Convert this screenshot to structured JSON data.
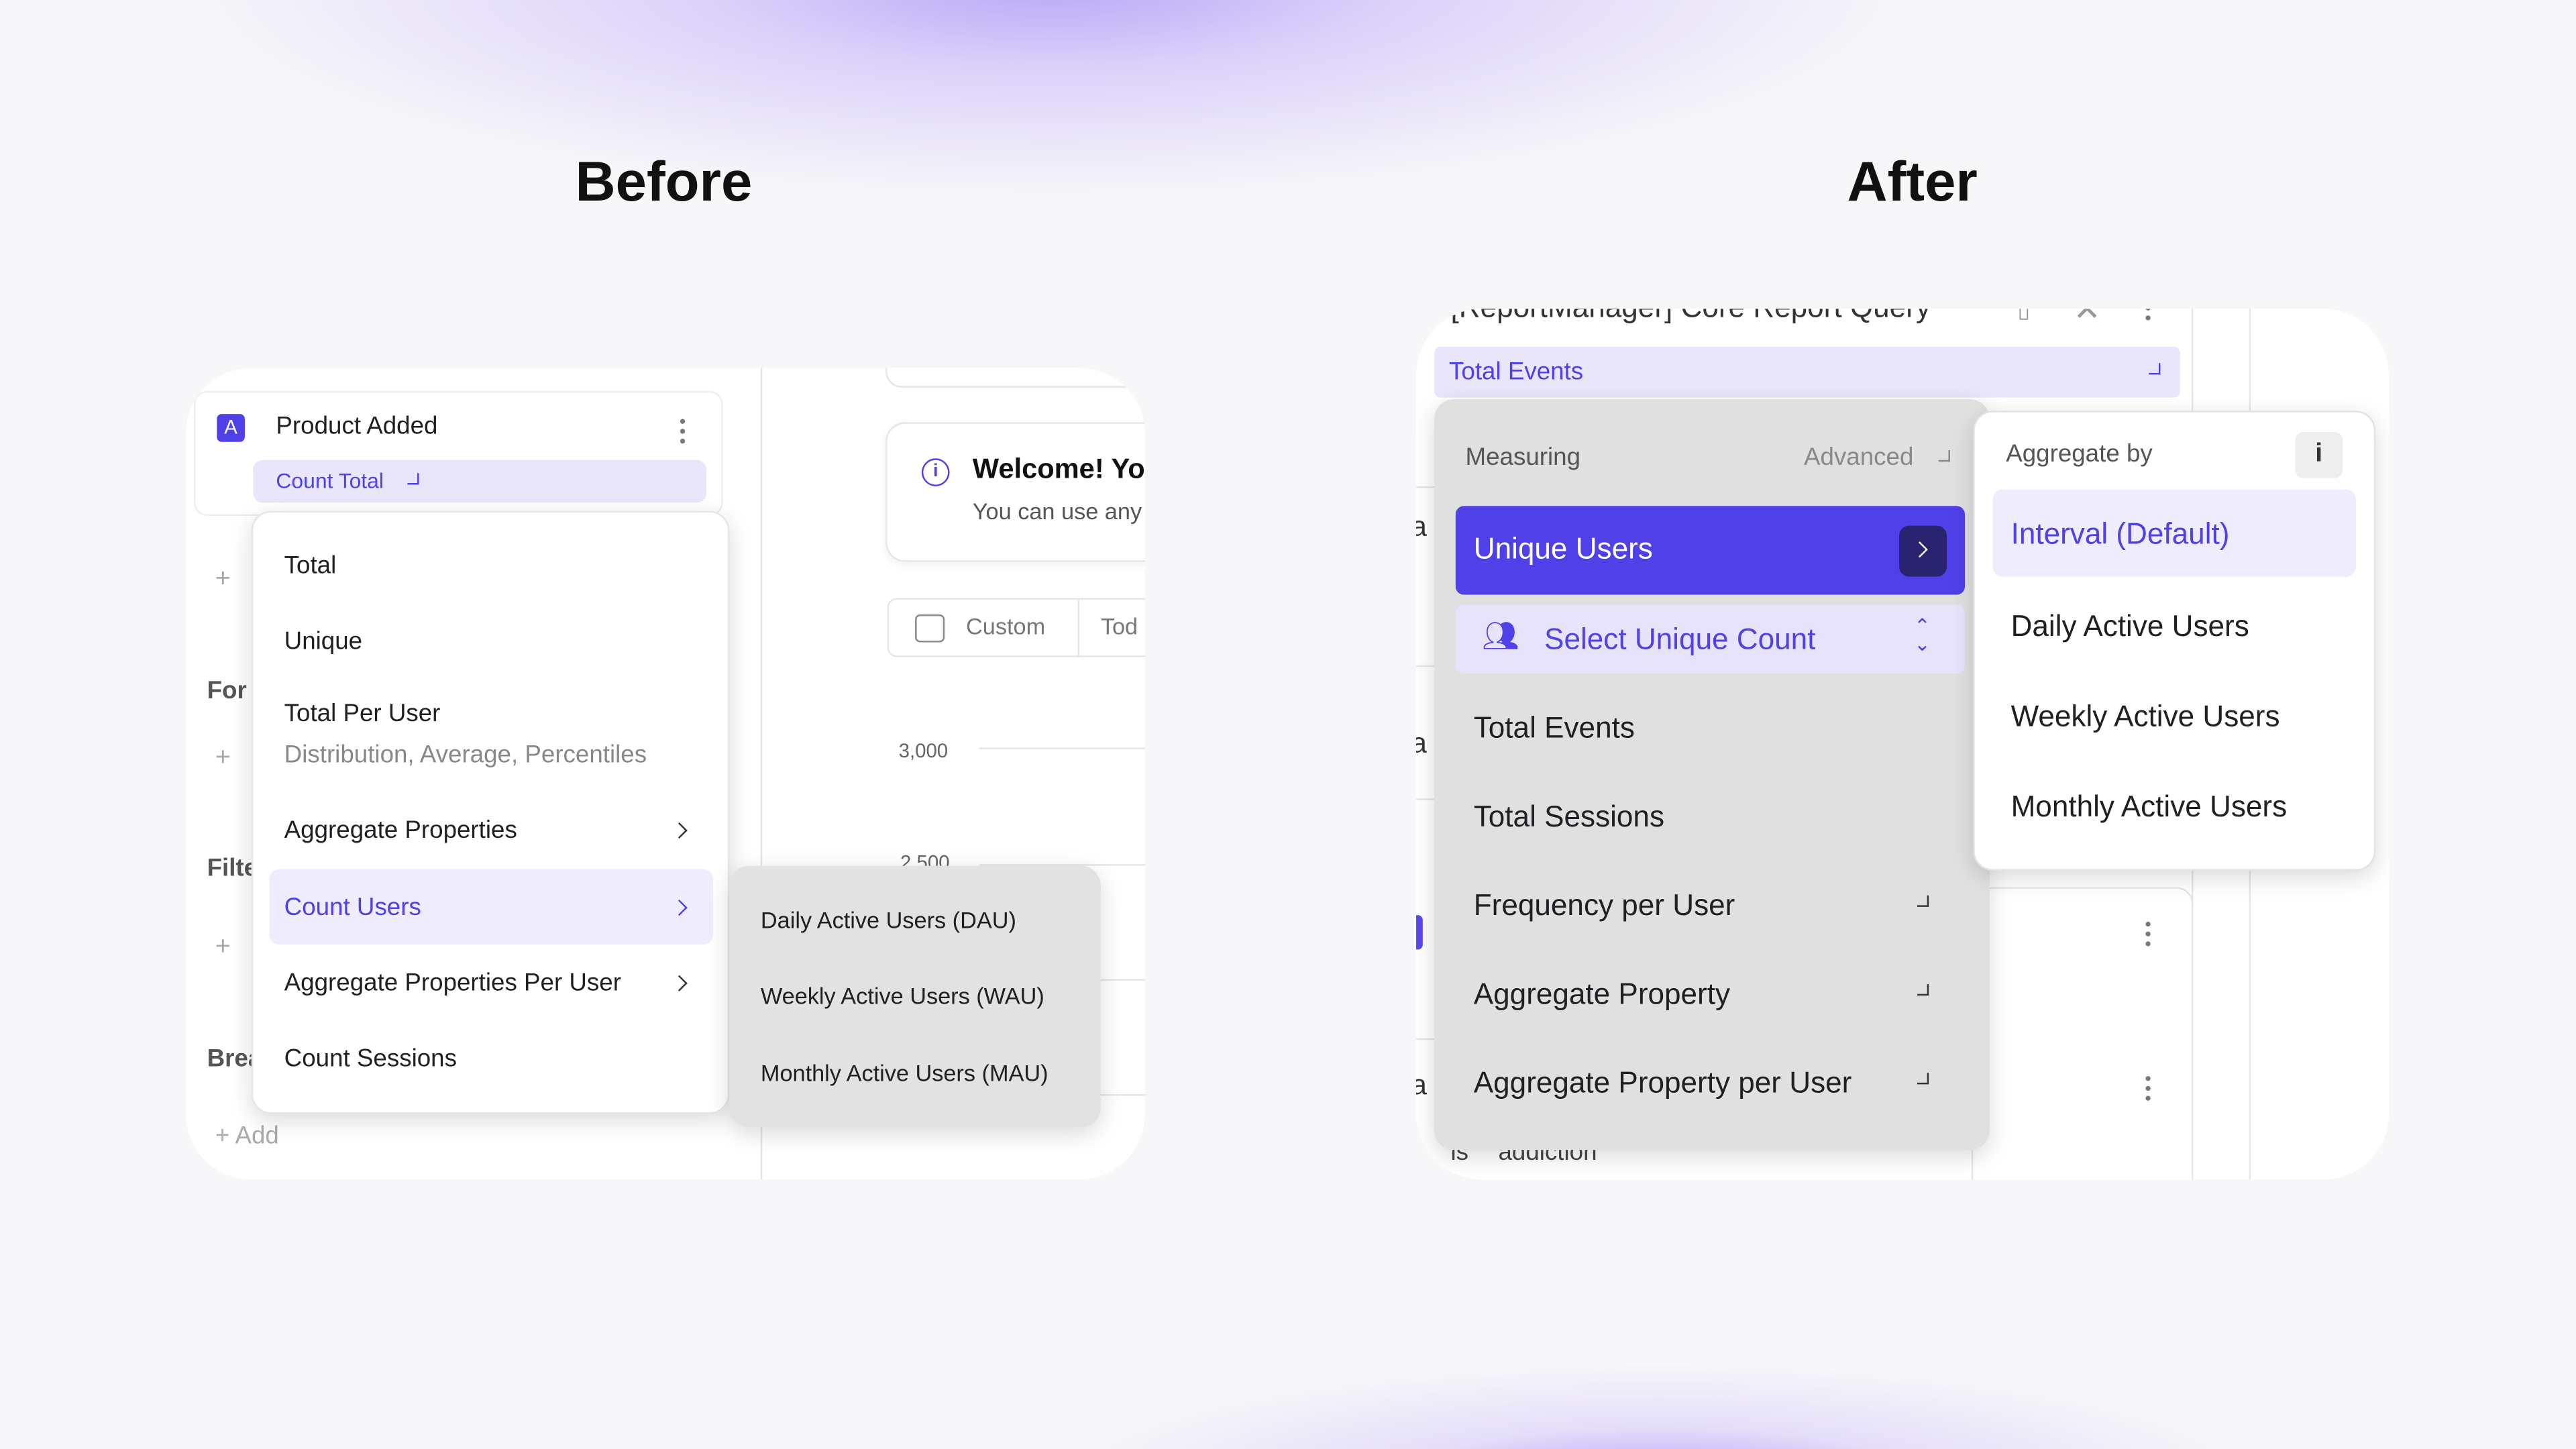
{
  "headings": {
    "before": "Before",
    "after": "After"
  },
  "colors": {
    "accent": "#5040e8",
    "accent_light": "#e9e6fc",
    "menu_grey": "#e0e0e0"
  },
  "before": {
    "event": {
      "badge": "A",
      "name": "Product Added",
      "measure": "Count Total"
    },
    "side_labels": [
      "For",
      "Filte",
      "Brea"
    ],
    "add_label": "Add",
    "menu": {
      "items": [
        {
          "label": "Total"
        },
        {
          "label": "Unique"
        },
        {
          "label": "Total Per User",
          "sub": "Distribution, Average, Percentiles"
        },
        {
          "label": "Aggregate Properties",
          "has_submenu": true
        },
        {
          "label": "Count Users",
          "has_submenu": true,
          "selected": true
        },
        {
          "label": "Aggregate Properties Per User",
          "has_submenu": true
        },
        {
          "label": "Count Sessions"
        }
      ]
    },
    "submenu": [
      "Daily Active Users (DAU)",
      "Weekly Active Users (WAU)",
      "Monthly Active Users (MAU)"
    ],
    "welcome": {
      "title": "Welcome! Yo",
      "body": "You can use any"
    },
    "date_buttons": [
      "Custom",
      "Tod"
    ],
    "chart_ticks": [
      "3,000",
      "2,500"
    ]
  },
  "after": {
    "query_title": "[ReportManager] Core Report Query",
    "measure": "Total Events",
    "menu": {
      "header": "Measuring",
      "mode": "Advanced",
      "selected": "Unique Users",
      "select_unique": "Select Unique Count",
      "items": [
        {
          "label": "Total Events"
        },
        {
          "label": "Total Sessions"
        },
        {
          "label": "Frequency per User",
          "expand": true
        },
        {
          "label": "Aggregate Property",
          "expand": true
        },
        {
          "label": "Aggregate Property per User",
          "expand": true
        }
      ]
    },
    "aggregate": {
      "header": "Aggregate by",
      "info": "i",
      "items": [
        "Interval (Default)",
        "Daily Active Users",
        "Weekly Active Users",
        "Monthly Active Users"
      ]
    },
    "side_letters": [
      "a",
      "a",
      "a"
    ],
    "footer_text": {
      "op": "is",
      "value": "addiction"
    }
  }
}
